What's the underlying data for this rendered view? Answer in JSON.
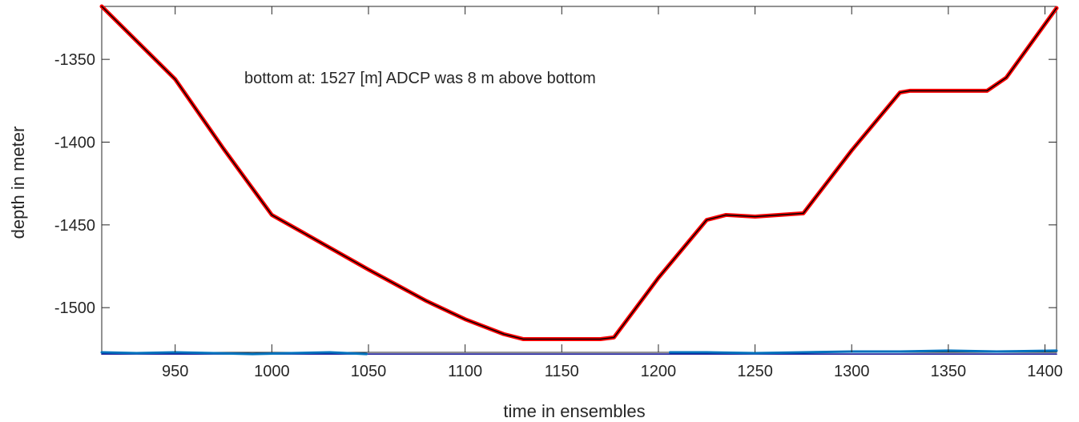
{
  "chart_data": {
    "type": "line",
    "title": "",
    "xlabel": "time in ensembles",
    "ylabel": "depth in meter",
    "xlim": [
      912,
      1406
    ],
    "ylim": [
      -1527,
      -1318
    ],
    "xticks": [
      950,
      1000,
      1050,
      1100,
      1150,
      1200,
      1250,
      1300,
      1350,
      1400
    ],
    "yticks": [
      -1350,
      -1400,
      -1450,
      -1500
    ],
    "grid": false,
    "legend": "none",
    "annotation": "bottom at: 1527 [m]   ADCP was 8 m above bottom",
    "colors": {
      "depth_raw": "#ff0000",
      "depth_smooth": "#000000",
      "bottom_track": "#0072bd",
      "bottom_ref": "#00008b"
    },
    "series": [
      {
        "key": "depth_raw",
        "x": [
          912,
          950,
          975,
          1000,
          1050,
          1080,
          1100,
          1120,
          1130,
          1150,
          1170,
          1177,
          1200,
          1225,
          1235,
          1250,
          1275,
          1300,
          1325,
          1330,
          1350,
          1370,
          1380,
          1406
        ],
        "values": [
          -1318,
          -1362,
          -1404,
          -1444,
          -1477,
          -1496,
          -1507,
          -1516,
          -1519,
          -1519,
          -1519,
          -1518,
          -1482,
          -1447,
          -1444,
          -1445,
          -1443,
          -1405,
          -1370,
          -1369,
          -1369,
          -1369,
          -1361,
          -1319
        ]
      },
      {
        "key": "depth_smooth",
        "x": [
          912,
          950,
          975,
          1000,
          1050,
          1080,
          1100,
          1120,
          1130,
          1150,
          1170,
          1177,
          1200,
          1225,
          1235,
          1250,
          1275,
          1300,
          1325,
          1330,
          1350,
          1370,
          1380,
          1406
        ],
        "values": [
          -1318,
          -1362,
          -1404,
          -1444,
          -1477,
          -1496,
          -1507,
          -1516,
          -1519,
          -1519,
          -1519,
          -1518,
          -1482,
          -1447,
          -1444,
          -1445,
          -1443,
          -1405,
          -1370,
          -1369,
          -1369,
          -1369,
          -1361,
          -1319
        ]
      },
      {
        "key": "bottom_track",
        "x": [
          912,
          930,
          950,
          970,
          990,
          1010,
          1030,
          1049,
          1050,
          1205,
          1206,
          1225,
          1250,
          1275,
          1300,
          1325,
          1350,
          1375,
          1406
        ],
        "values": [
          -1527,
          -1527.5,
          -1527,
          -1527.5,
          -1528,
          -1527.5,
          -1527,
          -1528,
          null,
          null,
          -1527,
          -1527,
          -1527.5,
          -1527,
          -1526.5,
          -1526.5,
          -1526,
          -1526.5,
          -1526
        ]
      },
      {
        "key": "bottom_ref",
        "x": [
          912,
          1406
        ],
        "values": [
          -1528,
          -1528
        ]
      }
    ]
  }
}
